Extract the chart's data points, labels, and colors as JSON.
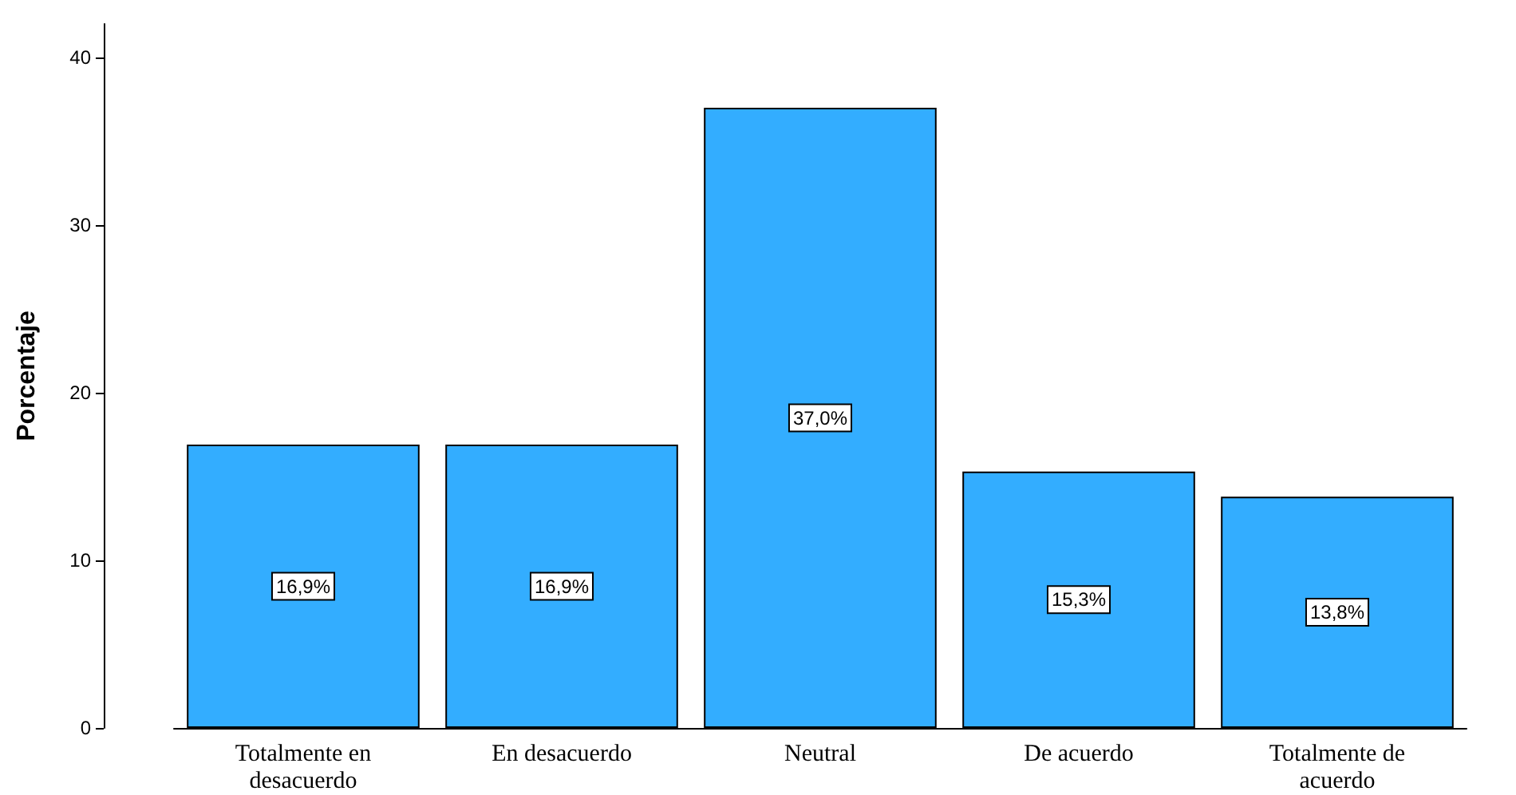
{
  "chart_data": {
    "type": "bar",
    "ylabel": "Porcentaje",
    "categories": [
      "Totalmente en desacuerdo",
      "En desacuerdo",
      "Neutral",
      "De acuerdo",
      "Totalmente de acuerdo"
    ],
    "values": [
      16.9,
      16.9,
      37.0,
      15.3,
      13.8
    ],
    "value_labels": [
      "16,9%",
      "16,9%",
      "37,0%",
      "15,3%",
      "13,8%"
    ],
    "color": "#33adff",
    "ylim": [
      0,
      42
    ],
    "yticks": [
      0,
      10,
      20,
      30,
      40
    ]
  }
}
